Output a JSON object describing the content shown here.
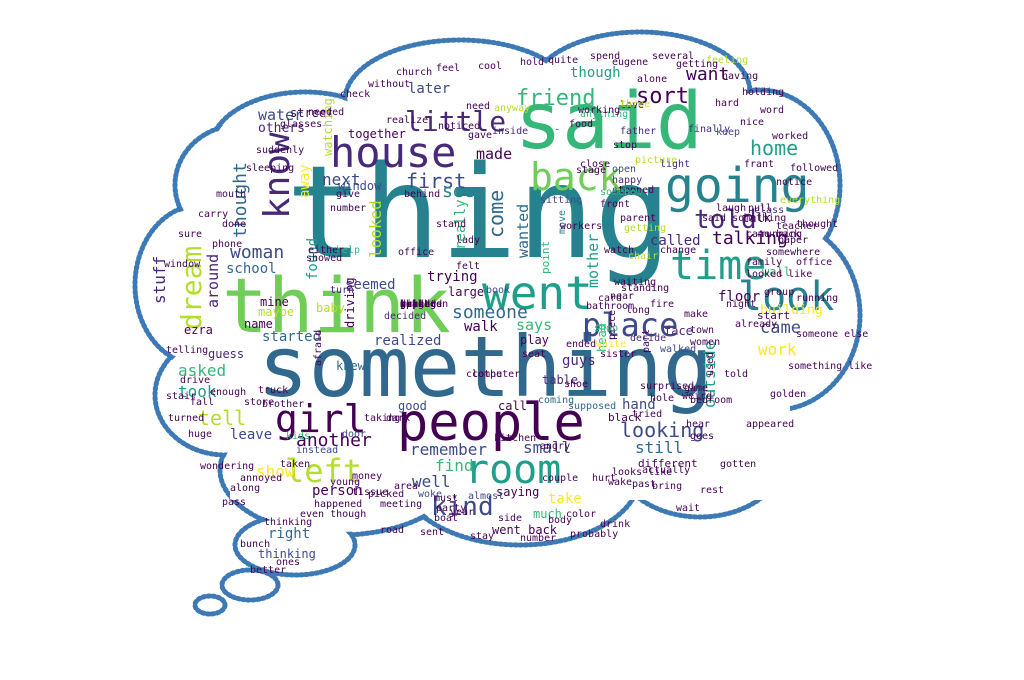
{
  "colors": {
    "outline": "#3d7ab5",
    "background": "#ffffff",
    "palette": [
      "#440154",
      "#482878",
      "#3e4a89",
      "#31688e",
      "#26828e",
      "#1f9e89",
      "#35b779",
      "#6ece58",
      "#b5de2b",
      "#fde725"
    ]
  },
  "words": [
    {
      "text": "thing",
      "color": "#26828e"
    },
    {
      "text": "something",
      "color": "#31688e"
    },
    {
      "text": "said",
      "color": "#35b779"
    },
    {
      "text": "think",
      "color": "#6ece58"
    },
    {
      "text": "people",
      "color": "#440154"
    },
    {
      "text": "going",
      "color": "#26828e"
    },
    {
      "text": "house",
      "color": "#482878"
    },
    {
      "text": "know",
      "color": "#482878"
    },
    {
      "text": "room",
      "color": "#1f9e89"
    },
    {
      "text": "went",
      "color": "#1f9e89"
    },
    {
      "text": "look",
      "color": "#26828e"
    },
    {
      "text": "back",
      "color": "#6ece58"
    },
    {
      "text": "time",
      "color": "#1f9e89"
    },
    {
      "text": "girl",
      "color": "#440154"
    },
    {
      "text": "place",
      "color": "#3e4a89"
    },
    {
      "text": "left",
      "color": "#b5de2b"
    },
    {
      "text": "little",
      "color": "#482878"
    },
    {
      "text": "friend",
      "color": "#35b779"
    },
    {
      "text": "told",
      "color": "#482878"
    },
    {
      "text": "dream",
      "color": "#b5de2b"
    },
    {
      "text": "kind",
      "color": "#3e4a89"
    },
    {
      "text": "sort",
      "color": "#440154"
    },
    {
      "text": "first",
      "color": "#3e4a89"
    },
    {
      "text": "come",
      "color": "#31688e"
    },
    {
      "text": "home",
      "color": "#1f9e89"
    },
    {
      "text": "woman",
      "color": "#3e4a89"
    },
    {
      "text": "thought",
      "color": "#31688e"
    },
    {
      "text": "talking",
      "color": "#440154"
    },
    {
      "text": "another",
      "color": "#440154"
    },
    {
      "text": "looking",
      "color": "#3e4a89"
    },
    {
      "text": "came",
      "color": "#3e4a89"
    },
    {
      "text": "work",
      "color": "#fde725"
    },
    {
      "text": "want",
      "color": "#440154"
    },
    {
      "text": "made",
      "color": "#440154"
    },
    {
      "text": "next",
      "color": "#3e4a89"
    },
    {
      "text": "seem",
      "color": "#26828e"
    },
    {
      "text": "someone",
      "color": "#31688e"
    },
    {
      "text": "later",
      "color": "#3e4a89"
    },
    {
      "text": "outside",
      "color": "#1f9e89"
    },
    {
      "text": "water",
      "color": "#3e4a89"
    },
    {
      "text": "stuff",
      "color": "#482878"
    },
    {
      "text": "around",
      "color": "#482878"
    },
    {
      "text": "tell",
      "color": "#b5de2b"
    },
    {
      "text": "took",
      "color": "#1f9e89"
    },
    {
      "text": "asked",
      "color": "#35b779"
    },
    {
      "text": "still",
      "color": "#31688e"
    },
    {
      "text": "small",
      "color": "#3e4a89"
    },
    {
      "text": "remember",
      "color": "#3e4a89"
    },
    {
      "text": "find",
      "color": "#35b779"
    },
    {
      "text": "well",
      "color": "#3e4a89"
    },
    {
      "text": "right",
      "color": "#31688e"
    },
    {
      "text": "away",
      "color": "#fde725"
    },
    {
      "text": "looked",
      "color": "#b5de2b"
    },
    {
      "text": "found",
      "color": "#1f9e89"
    },
    {
      "text": "wanted",
      "color": "#31688e"
    },
    {
      "text": "mother",
      "color": "#1f9e89"
    },
    {
      "text": "says",
      "color": "#35b779"
    },
    {
      "text": "walk",
      "color": "#440154"
    },
    {
      "text": "started",
      "color": "#31688e"
    },
    {
      "text": "realized",
      "color": "#3e4a89"
    },
    {
      "text": "leave",
      "color": "#3e4a89"
    },
    {
      "text": "show",
      "color": "#fde725"
    },
    {
      "text": "person",
      "color": "#440154"
    },
    {
      "text": "called",
      "color": "#482878"
    },
    {
      "text": "floor",
      "color": "#440154"
    },
    {
      "text": "hand",
      "color": "#3e4a89"
    },
    {
      "text": "school",
      "color": "#31688e"
    },
    {
      "text": "though",
      "color": "#1f9e89"
    },
    {
      "text": "trying",
      "color": "#440154"
    },
    {
      "text": "seemed",
      "color": "#3e4a89"
    },
    {
      "text": "others",
      "color": "#482878"
    },
    {
      "text": "building",
      "color": "#fde725"
    },
    {
      "text": "really",
      "color": "#35b779"
    },
    {
      "text": "take",
      "color": "#fde725"
    },
    {
      "text": "much",
      "color": "#35b779"
    },
    {
      "text": "saying",
      "color": "#440154"
    },
    {
      "text": "thinking",
      "color": "#3e4a89"
    },
    {
      "text": "street",
      "color": "#440154"
    },
    {
      "text": "window",
      "color": "#3e4a89"
    },
    {
      "text": "together",
      "color": "#440154"
    },
    {
      "text": "watching",
      "color": "#b5de2b"
    },
    {
      "text": "driving",
      "color": "#440154"
    },
    {
      "text": "talk",
      "color": "#440154"
    },
    {
      "text": "wall",
      "color": "#35b779"
    },
    {
      "text": "start",
      "color": "#440154"
    },
    {
      "text": "face",
      "color": "#482878"
    },
    {
      "text": "guys",
      "color": "#482878"
    },
    {
      "text": "point",
      "color": "#35b779"
    },
    {
      "text": "head",
      "color": "#35b779"
    },
    {
      "text": "play",
      "color": "#440154"
    },
    {
      "text": "table",
      "color": "#482878"
    },
    {
      "text": "good",
      "color": "#3e4a89"
    },
    {
      "text": "call",
      "color": "#440154"
    },
    {
      "text": "went back",
      "color": "#440154"
    },
    {
      "text": "different",
      "color": "#440154"
    },
    {
      "text": "black",
      "color": "#440154"
    },
    {
      "text": "large",
      "color": "#440154"
    },
    {
      "text": "knew",
      "color": "#31688e"
    },
    {
      "text": "baby",
      "color": "#b5de2b"
    },
    {
      "text": "maybe",
      "color": "#b5de2b"
    },
    {
      "text": "mine",
      "color": "#440154"
    },
    {
      "text": "name",
      "color": "#440154"
    },
    {
      "text": "guess",
      "color": "#482878"
    },
    {
      "text": "ezra",
      "color": "#440154"
    },
    {
      "text": "book",
      "color": "#3e4a89"
    },
    {
      "text": "move",
      "color": "#26828e"
    },
    {
      "text": "said something",
      "color": "#440154"
    },
    {
      "text": "somewhere",
      "color": "#440154"
    },
    {
      "text": "class",
      "color": "#482878"
    },
    {
      "text": "picture",
      "color": "#b5de2b"
    },
    {
      "text": "light",
      "color": "#482878"
    },
    {
      "text": "father",
      "color": "#482878"
    },
    {
      "text": "finally",
      "color": "#482878"
    },
    {
      "text": "keep",
      "color": "#3e4a89"
    },
    {
      "text": "hard",
      "color": "#440154"
    },
    {
      "text": "food",
      "color": "#440154"
    },
    {
      "text": "inside",
      "color": "#482878"
    },
    {
      "text": "stop",
      "color": "#440154"
    },
    {
      "text": "stopped",
      "color": "#440154"
    },
    {
      "text": "sitting",
      "color": "#3e4a89"
    },
    {
      "text": "happy",
      "color": "#482878"
    },
    {
      "text": "open",
      "color": "#3e4a89"
    },
    {
      "text": "behind",
      "color": "#440154"
    },
    {
      "text": "give",
      "color": "#440154"
    },
    {
      "text": "turn",
      "color": "#482878"
    },
    {
      "text": "help",
      "color": "#35b779"
    },
    {
      "text": "felt",
      "color": "#440154"
    },
    {
      "text": "decided",
      "color": "#482878"
    },
    {
      "text": "piece",
      "color": "#440154"
    },
    {
      "text": "long",
      "color": "#440154"
    },
    {
      "text": "near",
      "color": "#440154"
    },
    {
      "text": "decide",
      "color": "#482878"
    },
    {
      "text": "shop",
      "color": "#35b779"
    },
    {
      "text": "walked",
      "color": "#3e4a89"
    },
    {
      "text": "part",
      "color": "#440154"
    },
    {
      "text": "used",
      "color": "#440154"
    },
    {
      "text": "actually",
      "color": "#440154"
    },
    {
      "text": "tried",
      "color": "#440154"
    },
    {
      "text": "bedroom",
      "color": "#440154"
    },
    {
      "text": "supposed",
      "color": "#31688e"
    },
    {
      "text": "coming",
      "color": "#31688e"
    },
    {
      "text": "computer",
      "color": "#440154"
    },
    {
      "text": "taking",
      "color": "#440154"
    },
    {
      "text": "dark",
      "color": "#440154"
    },
    {
      "text": "door",
      "color": "#3e4a89"
    },
    {
      "text": "money",
      "color": "#440154"
    },
    {
      "text": "area",
      "color": "#440154"
    },
    {
      "text": "woke",
      "color": "#3e4a89"
    },
    {
      "text": "almost",
      "color": "#3e4a89"
    },
    {
      "text": "must",
      "color": "#440154"
    },
    {
      "text": "party",
      "color": "#440154"
    },
    {
      "text": "young",
      "color": "#440154"
    },
    {
      "text": "store",
      "color": "#440154"
    },
    {
      "text": "brother",
      "color": "#440154"
    },
    {
      "text": "truck",
      "color": "#440154"
    },
    {
      "text": "afraid",
      "color": "#440154"
    },
    {
      "text": "kids",
      "color": "#35b779"
    },
    {
      "text": "taken",
      "color": "#440154"
    },
    {
      "text": "instead",
      "color": "#3e4a89"
    },
    {
      "text": "bathroom",
      "color": "#440154"
    },
    {
      "text": "waiting",
      "color": "#440154"
    },
    {
      "text": "standing",
      "color": "#440154"
    },
    {
      "text": "chair",
      "color": "#b5de2b"
    },
    {
      "text": "getting",
      "color": "#b5de2b"
    },
    {
      "text": "parent",
      "color": "#440154"
    },
    {
      "text": "laugh",
      "color": "#440154"
    },
    {
      "text": "nice",
      "color": "#440154"
    },
    {
      "text": "frant",
      "color": "#440154"
    },
    {
      "text": "word",
      "color": "#440154"
    },
    {
      "text": "anything",
      "color": "#35b779"
    },
    {
      "text": "alone",
      "color": "#440154"
    },
    {
      "text": "love",
      "color": "#440154"
    },
    {
      "text": "feeling",
      "color": "#b5de2b"
    },
    {
      "text": "three",
      "color": "#b5de2b"
    },
    {
      "text": "working",
      "color": "#440154"
    },
    {
      "text": "need",
      "color": "#440154"
    },
    {
      "text": "realize",
      "color": "#440154"
    },
    {
      "text": "gave",
      "color": "#440154"
    },
    {
      "text": "anyway",
      "color": "#b5de2b"
    },
    {
      "text": "noticed",
      "color": "#440154"
    },
    {
      "text": "number",
      "color": "#440154"
    },
    {
      "text": "either",
      "color": "#440154"
    },
    {
      "text": "showed",
      "color": "#440154"
    },
    {
      "text": "phone",
      "color": "#440154"
    },
    {
      "text": "done",
      "color": "#440154"
    },
    {
      "text": "office",
      "color": "#440154"
    },
    {
      "text": "stand",
      "color": "#440154"
    },
    {
      "text": "lady",
      "color": "#440154"
    },
    {
      "text": "stage",
      "color": "#440154"
    },
    {
      "text": "close",
      "color": "#440154"
    },
    {
      "text": "group",
      "color": "#440154"
    },
    {
      "text": "running",
      "color": "#440154"
    },
    {
      "text": "notice",
      "color": "#440154"
    },
    {
      "text": "everything",
      "color": "#b5de2b"
    },
    {
      "text": "paper",
      "color": "#440154"
    },
    {
      "text": "already",
      "color": "#440154"
    },
    {
      "text": "ended",
      "color": "#440154"
    },
    {
      "text": "white",
      "color": "#fde725"
    },
    {
      "text": "women",
      "color": "#440154"
    },
    {
      "text": "game",
      "color": "#440154"
    },
    {
      "text": "weird",
      "color": "#440154"
    },
    {
      "text": "shoe",
      "color": "#440154"
    },
    {
      "text": "seat",
      "color": "#440154"
    },
    {
      "text": "clothe",
      "color": "#440154"
    },
    {
      "text": "angry",
      "color": "#440154"
    },
    {
      "text": "kitchen",
      "color": "#440154"
    },
    {
      "text": "couple",
      "color": "#440154"
    },
    {
      "text": "tissue",
      "color": "#440154"
    },
    {
      "text": "pass",
      "color": "#440154"
    },
    {
      "text": "annoyed",
      "color": "#440154"
    },
    {
      "text": "enough",
      "color": "#440154"
    },
    {
      "text": "fall",
      "color": "#440154"
    },
    {
      "text": "drive",
      "color": "#440154"
    },
    {
      "text": "somehow",
      "color": "#35b779"
    },
    {
      "text": "watch",
      "color": "#440154"
    },
    {
      "text": "make",
      "color": "#440154"
    },
    {
      "text": "pull",
      "color": "#440154"
    },
    {
      "text": "change",
      "color": "#440154"
    },
    {
      "text": "hear",
      "color": "#440154"
    },
    {
      "text": "goes",
      "color": "#440154"
    },
    {
      "text": "family",
      "color": "#440154"
    },
    {
      "text": "teacher",
      "color": "#440154"
    },
    {
      "text": "came back",
      "color": "#440154"
    },
    {
      "text": "looked like",
      "color": "#440154"
    },
    {
      "text": "night",
      "color": "#440154"
    },
    {
      "text": "fire",
      "color": "#440154"
    },
    {
      "text": "town",
      "color": "#440154"
    },
    {
      "text": "surprised",
      "color": "#440154"
    },
    {
      "text": "hole",
      "color": "#440154"
    },
    {
      "text": "sister",
      "color": "#440154"
    },
    {
      "text": "card",
      "color": "#440154"
    },
    {
      "text": "told",
      "color": "#440154"
    },
    {
      "text": "bring",
      "color": "#440154"
    },
    {
      "text": "past",
      "color": "#440154"
    },
    {
      "text": "wake",
      "color": "#440154"
    },
    {
      "text": "looks like",
      "color": "#440154"
    },
    {
      "text": "hurt",
      "color": "#440154"
    },
    {
      "text": "color",
      "color": "#440154"
    },
    {
      "text": "body",
      "color": "#440154"
    },
    {
      "text": "side",
      "color": "#440154"
    },
    {
      "text": "year",
      "color": "#440154"
    },
    {
      "text": "boat",
      "color": "#440154"
    },
    {
      "text": "meeting",
      "color": "#440154"
    },
    {
      "text": "picked",
      "color": "#440154"
    },
    {
      "text": "happened",
      "color": "#440154"
    },
    {
      "text": "even though",
      "color": "#440154"
    },
    {
      "text": "thinking",
      "color": "#440154"
    },
    {
      "text": "along",
      "color": "#440154"
    },
    {
      "text": "wondering",
      "color": "#440154"
    },
    {
      "text": "huge",
      "color": "#440154"
    },
    {
      "text": "turned",
      "color": "#440154"
    },
    {
      "text": "stair",
      "color": "#440154"
    },
    {
      "text": "telling",
      "color": "#440154"
    },
    {
      "text": "window",
      "color": "#440154"
    },
    {
      "text": "sure",
      "color": "#440154"
    },
    {
      "text": "carry",
      "color": "#440154"
    },
    {
      "text": "mouth",
      "color": "#440154"
    },
    {
      "text": "sleeping",
      "color": "#440154"
    },
    {
      "text": "suddenly",
      "color": "#440154"
    },
    {
      "text": "glasses",
      "color": "#440154"
    },
    {
      "text": "needed",
      "color": "#440154"
    },
    {
      "text": "check",
      "color": "#440154"
    },
    {
      "text": "without",
      "color": "#440154"
    },
    {
      "text": "church",
      "color": "#440154"
    },
    {
      "text": "feel",
      "color": "#440154"
    },
    {
      "text": "cool",
      "color": "#440154"
    },
    {
      "text": "hold",
      "color": "#440154"
    },
    {
      "text": "quite",
      "color": "#440154"
    },
    {
      "text": "spend",
      "color": "#440154"
    },
    {
      "text": "eugene",
      "color": "#440154"
    },
    {
      "text": "several",
      "color": "#440154"
    },
    {
      "text": "getting",
      "color": "#440154"
    },
    {
      "text": "having",
      "color": "#440154"
    },
    {
      "text": "holding",
      "color": "#440154"
    },
    {
      "text": "worked",
      "color": "#440154"
    },
    {
      "text": "followed",
      "color": "#440154"
    },
    {
      "text": "thought",
      "color": "#440154"
    },
    {
      "text": "office",
      "color": "#440154"
    },
    {
      "text": "running",
      "color": "#440154"
    },
    {
      "text": "someone else",
      "color": "#440154"
    },
    {
      "text": "something like",
      "color": "#440154"
    },
    {
      "text": "golden",
      "color": "#440154"
    },
    {
      "text": "appeared",
      "color": "#440154"
    },
    {
      "text": "gotten",
      "color": "#440154"
    },
    {
      "text": "rest",
      "color": "#440154"
    },
    {
      "text": "wait",
      "color": "#440154"
    },
    {
      "text": "drink",
      "color": "#440154"
    },
    {
      "text": "probably",
      "color": "#440154"
    },
    {
      "text": "number",
      "color": "#440154"
    },
    {
      "text": "stay",
      "color": "#440154"
    },
    {
      "text": "sent",
      "color": "#440154"
    },
    {
      "text": "road",
      "color": "#440154"
    },
    {
      "text": "bunch",
      "color": "#440154"
    },
    {
      "text": "ones",
      "color": "#440154"
    },
    {
      "text": "better",
      "color": "#440154"
    },
    {
      "text": "front",
      "color": "#440154"
    },
    {
      "text": "workers",
      "color": "#440154"
    },
    {
      "text": "eating",
      "color": "#440154"
    },
    {
      "text": "voice",
      "color": "#440154"
    },
    {
      "text": "sound",
      "color": "#440154"
    },
    {
      "text": "mean",
      "color": "#440154"
    },
    {
      "text": "boss",
      "color": "#440154"
    },
    {
      "text": "guy",
      "color": "#440154"
    },
    {
      "text": "line",
      "color": "#440154"
    },
    {
      "text": "upset",
      "color": "#440154"
    },
    {
      "text": "asking",
      "color": "#440154"
    },
    {
      "text": "children",
      "color": "#440154"
    },
    {
      "text": "appears",
      "color": "#440154"
    },
    {
      "text": "real",
      "color": "#440154"
    },
    {
      "text": "gone",
      "color": "#440154"
    },
    {
      "text": "reach",
      "color": "#440154"
    },
    {
      "text": "cat",
      "color": "#440154"
    },
    {
      "text": "dinner",
      "color": "#440154"
    },
    {
      "text": "yard",
      "color": "#440154"
    },
    {
      "text": "grabbed",
      "color": "#440154"
    },
    {
      "text": "pulled",
      "color": "#440154"
    },
    {
      "text": "bought",
      "color": "#440154"
    },
    {
      "text": "every",
      "color": "#440154"
    },
    {
      "text": "girl",
      "color": "#440154"
    }
  ]
}
